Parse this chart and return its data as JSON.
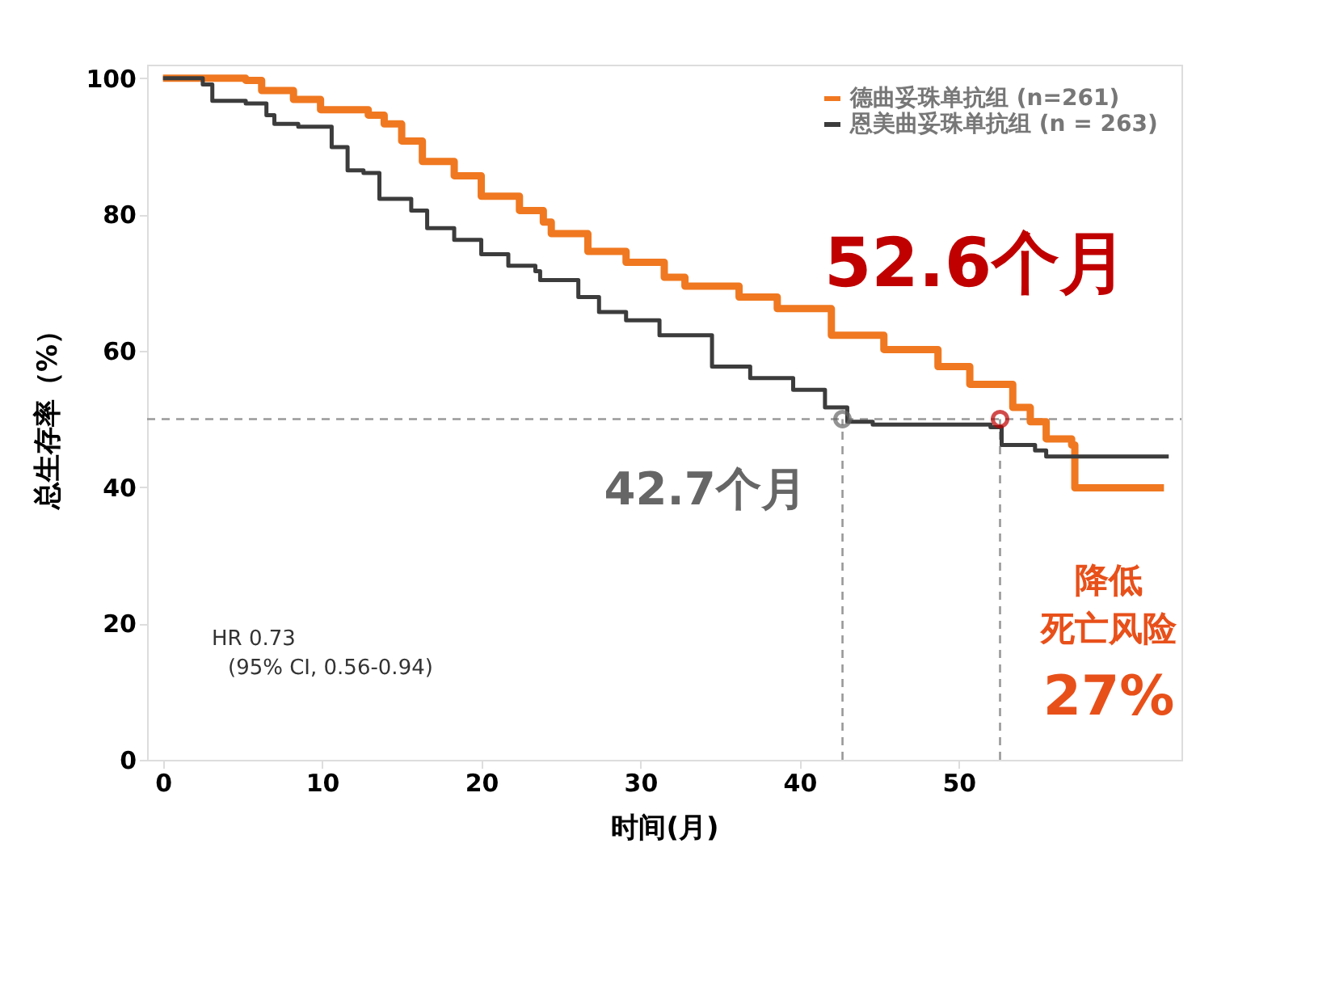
{
  "chart_data": {
    "type": "step",
    "xlabel": "时间(月)",
    "ylabel": "总生存率（%）",
    "xlim": [
      -1,
      64
    ],
    "ylim": [
      0,
      102
    ],
    "xticks": [
      0,
      10,
      20,
      30,
      40,
      50
    ],
    "yticks": [
      0,
      20,
      40,
      60,
      80,
      100
    ],
    "legend": "top right",
    "grid": false,
    "series": [
      {
        "name": "德曲妥珠单抗组 (n=261)",
        "color": "#f07820",
        "x": [
          0,
          5.2,
          6.2,
          8.2,
          9.9,
          12.9,
          13.9,
          15.0,
          16.3,
          18.3,
          20.0,
          22.4,
          23.9,
          24.4,
          26.7,
          29.1,
          31.5,
          32.8,
          36.2,
          38.6,
          42.0,
          45.3,
          48.7,
          50.7,
          53.4,
          54.5,
          55.5,
          57.1,
          57.3,
          62.9
        ],
        "values": [
          100,
          99.7,
          98.2,
          96.9,
          95.4,
          94.6,
          93.3,
          90.8,
          87.8,
          85.7,
          82.7,
          80.6,
          78.9,
          77.2,
          74.6,
          73.0,
          70.8,
          69.5,
          67.9,
          66.2,
          62.3,
          60.2,
          57.7,
          55.1,
          51.7,
          49.6,
          47.1,
          46.2,
          39.9,
          39.9
        ]
      },
      {
        "name": "恩美曲妥珠单抗组 (n = 263)",
        "color": "#3c3c3c",
        "x": [
          0,
          2.5,
          3.1,
          5.2,
          6.5,
          7.0,
          8.5,
          10.6,
          11.6,
          12.6,
          13.6,
          15.6,
          16.6,
          18.3,
          20.0,
          21.7,
          23.4,
          23.7,
          25.1,
          26.1,
          27.4,
          29.1,
          31.2,
          34.5,
          36.9,
          39.6,
          41.6,
          43.0,
          44.6,
          52.0,
          52.7,
          54.8,
          55.5,
          63.2
        ],
        "values": [
          100,
          99.1,
          96.7,
          96.3,
          94.6,
          93.3,
          92.9,
          89.9,
          86.5,
          86.1,
          82.3,
          80.6,
          78.0,
          76.3,
          74.2,
          72.5,
          71.7,
          70.4,
          70.4,
          67.9,
          65.7,
          64.5,
          62.3,
          57.7,
          56.0,
          54.3,
          51.7,
          49.6,
          49.2,
          48.8,
          46.2,
          45.4,
          44.5,
          44.5
        ]
      }
    ],
    "ref_lines": [
      {
        "axis": "y",
        "value": 50,
        "color": "#999999",
        "line_style": "dashed"
      },
      {
        "axis": "x",
        "value": 42.7,
        "color": "#999999",
        "line_style": "dashed"
      },
      {
        "axis": "x",
        "value": 52.6,
        "color": "#999999",
        "line_style": "dashed"
      }
    ],
    "annotations": [
      {
        "text": "52.6个月",
        "x": 52.6,
        "y": 50
      },
      {
        "text": "42.7个月",
        "x": 42.7,
        "y": 50
      },
      "HR 0.73",
      "(95% CI, 0.56-0.94)",
      "降低",
      "死亡风险",
      "27%"
    ]
  }
}
